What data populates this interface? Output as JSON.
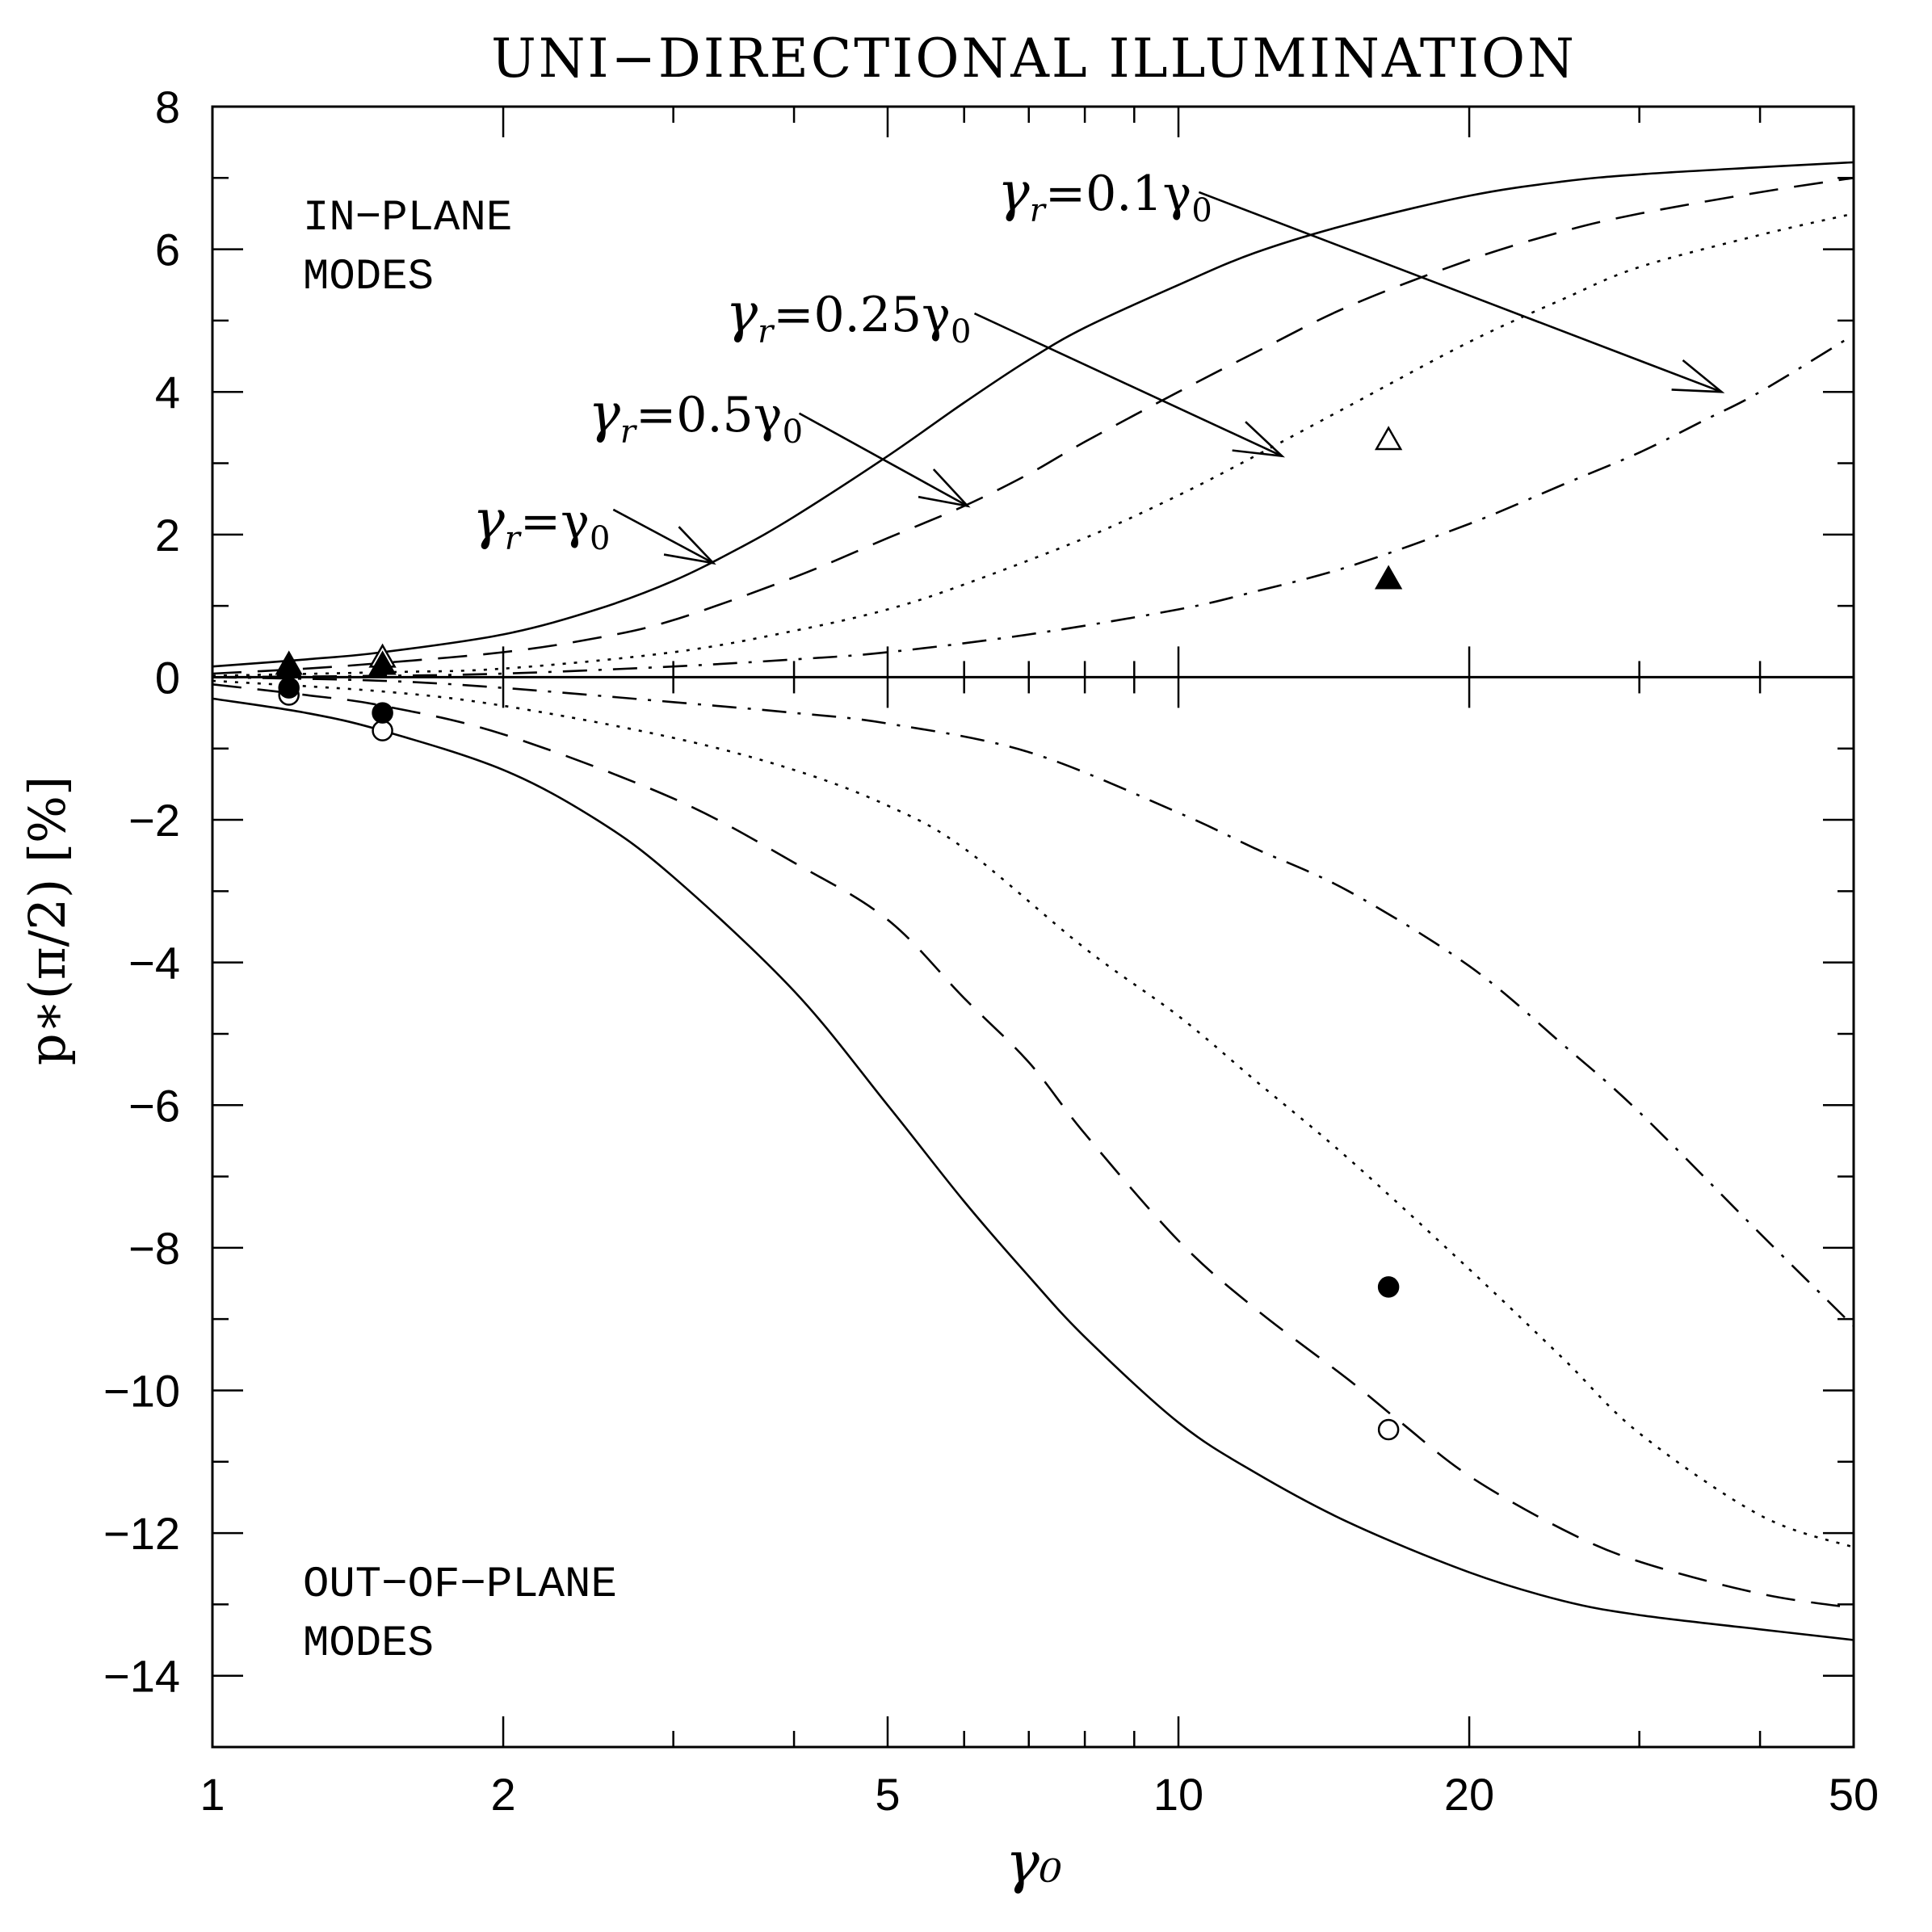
{
  "chart_data": {
    "type": "line",
    "title": "UNI−DIRECTIONAL ILLUMINATION",
    "xlabel": "γ₀",
    "ylabel": "p∗(π/2)  [%]",
    "xscale": "log",
    "xlim": [
      1,
      50
    ],
    "ylim": [
      -15,
      8
    ],
    "xticks": [
      {
        "value": 1,
        "label": "1"
      },
      {
        "value": 2,
        "label": "2"
      },
      {
        "value": 5,
        "label": "5"
      },
      {
        "value": 10,
        "label": "10"
      },
      {
        "value": 20,
        "label": "20"
      },
      {
        "value": 50,
        "label": "50"
      }
    ],
    "yticks": [
      {
        "value": 8,
        "label": "8"
      },
      {
        "value": 6,
        "label": "6"
      },
      {
        "value": 4,
        "label": "4"
      },
      {
        "value": 2,
        "label": "2"
      },
      {
        "value": 0,
        "label": "0"
      },
      {
        "value": -2,
        "label": "−2"
      },
      {
        "value": -4,
        "label": "−4"
      },
      {
        "value": -6,
        "label": "−6"
      },
      {
        "value": -8,
        "label": "−8"
      },
      {
        "value": -10,
        "label": "−10"
      },
      {
        "value": -12,
        "label": "−12"
      },
      {
        "value": -14,
        "label": "−14"
      }
    ],
    "region_labels": {
      "in_plane_line1": "IN−PLANE",
      "in_plane_line2": "MODES",
      "out_plane_line1": "OUT−OF−PLANE",
      "out_plane_line2": "MODES"
    },
    "series": [
      {
        "name": "γr=γ₀ (in-plane)",
        "style": "solid",
        "x": [
          1,
          1.25,
          1.5,
          2,
          2.5,
          3,
          3.5,
          4,
          5,
          6,
          7,
          8,
          10,
          12,
          15,
          20,
          25,
          30,
          40,
          50
        ],
        "y": [
          0.15,
          0.25,
          0.35,
          0.6,
          0.95,
          1.35,
          1.8,
          2.25,
          3.1,
          3.85,
          4.45,
          4.9,
          5.5,
          5.95,
          6.35,
          6.75,
          6.95,
          7.05,
          7.15,
          7.22
        ]
      },
      {
        "name": "γr=0.5γ₀ (in-plane)",
        "style": "dashed",
        "x": [
          1,
          1.25,
          1.5,
          2,
          2.5,
          3,
          4,
          5,
          6,
          7,
          8,
          10,
          12,
          15,
          20,
          25,
          30,
          40,
          50
        ],
        "y": [
          0.05,
          0.12,
          0.2,
          0.35,
          0.55,
          0.8,
          1.4,
          1.95,
          2.4,
          2.85,
          3.3,
          4.0,
          4.55,
          5.2,
          5.85,
          6.25,
          6.5,
          6.8,
          7.0
        ]
      },
      {
        "name": "γr=0.25γ₀ (in-plane)",
        "style": "dotted",
        "x": [
          1,
          1.5,
          2,
          3,
          4,
          5,
          6,
          8,
          10,
          12,
          15,
          20,
          25,
          30,
          40,
          50
        ],
        "y": [
          0.02,
          0.07,
          0.12,
          0.35,
          0.65,
          0.95,
          1.3,
          1.95,
          2.55,
          3.1,
          3.8,
          4.7,
          5.3,
          5.75,
          6.2,
          6.5
        ]
      },
      {
        "name": "γr=0.1γ₀ (in-plane)",
        "style": "dashdot",
        "x": [
          1,
          1.5,
          2,
          3,
          4,
          5,
          7,
          10,
          12,
          15,
          20,
          25,
          30,
          35,
          40,
          50
        ],
        "y": [
          0.0,
          0.02,
          0.05,
          0.15,
          0.25,
          0.35,
          0.6,
          0.95,
          1.2,
          1.55,
          2.15,
          2.7,
          3.15,
          3.6,
          4.0,
          4.8
        ]
      },
      {
        "name": "γr=γ₀ (out-of-plane)",
        "style": "solid",
        "x": [
          1,
          1.25,
          1.5,
          2,
          2.5,
          3,
          4,
          5,
          6,
          7,
          8,
          10,
          12,
          15,
          20,
          25,
          30,
          40,
          50
        ],
        "y": [
          -0.3,
          -0.5,
          -0.75,
          -1.3,
          -2.0,
          -2.8,
          -4.4,
          -6.0,
          -7.35,
          -8.4,
          -9.25,
          -10.45,
          -11.15,
          -11.85,
          -12.55,
          -12.95,
          -13.15,
          -13.35,
          -13.5
        ]
      },
      {
        "name": "γr=0.5γ₀ (out-of-plane)",
        "style": "dashed",
        "x": [
          1,
          1.25,
          1.5,
          2,
          3,
          4,
          5,
          6,
          7,
          8,
          10,
          12,
          15,
          17,
          20,
          25,
          30,
          40,
          50
        ],
        "y": [
          -0.1,
          -0.25,
          -0.4,
          -0.8,
          -1.7,
          -2.6,
          -3.4,
          -4.5,
          -5.4,
          -6.4,
          -7.9,
          -8.85,
          -9.85,
          -10.45,
          -11.2,
          -11.95,
          -12.4,
          -12.85,
          -13.05
        ]
      },
      {
        "name": "γr=0.25γ₀ (out-of-plane)",
        "style": "dotted",
        "x": [
          1,
          1.5,
          2,
          3,
          4,
          5,
          6,
          8,
          10,
          12,
          15,
          20,
          25,
          30,
          40,
          50
        ],
        "y": [
          -0.05,
          -0.2,
          -0.4,
          -0.85,
          -1.3,
          -1.8,
          -2.4,
          -3.8,
          -4.75,
          -5.65,
          -6.75,
          -8.3,
          -9.55,
          -10.6,
          -11.75,
          -12.2
        ]
      },
      {
        "name": "γr=0.1γ₀ (out-of-plane)",
        "style": "dashdot",
        "x": [
          1,
          1.5,
          2,
          3,
          4,
          5,
          7,
          10,
          12,
          15,
          20,
          25,
          30,
          40,
          50
        ],
        "y": [
          0.0,
          -0.05,
          -0.15,
          -0.35,
          -0.5,
          -0.65,
          -1.05,
          -1.9,
          -2.4,
          -3.0,
          -4.05,
          -5.15,
          -6.1,
          -7.8,
          -9.1
        ]
      }
    ],
    "markers": [
      {
        "kind": "open-triangle",
        "points": [
          [
            1.2,
            0.15
          ],
          [
            1.5,
            0.25
          ],
          [
            16.5,
            3.3
          ]
        ]
      },
      {
        "kind": "filled-triangle",
        "points": [
          [
            1.2,
            0.1
          ],
          [
            1.5,
            0.15
          ],
          [
            16.5,
            1.35
          ]
        ]
      },
      {
        "kind": "open-circle",
        "points": [
          [
            1.2,
            -0.25
          ],
          [
            1.5,
            -0.75
          ],
          [
            16.5,
            -10.55
          ]
        ]
      },
      {
        "kind": "filled-circle",
        "points": [
          [
            1.2,
            -0.15
          ],
          [
            1.5,
            -0.5
          ],
          [
            16.5,
            -8.55
          ]
        ]
      }
    ],
    "annotations": [
      {
        "label_main": "γ",
        "label_sub": "r",
        "label_rest": "=0.1γ",
        "label_sub2": "0",
        "text_at": [
          6.5,
          6.55
        ],
        "line_from": [
          10.5,
          6.8
        ],
        "arrow_to": [
          36.5,
          4.0
        ]
      },
      {
        "label_main": "γ",
        "label_sub": "r",
        "label_rest": "=0.25γ",
        "label_sub2": "0",
        "text_at": [
          3.4,
          4.85
        ],
        "line_from": [
          6.15,
          5.1
        ],
        "arrow_to": [
          12.8,
          3.1
        ]
      },
      {
        "label_main": "γ",
        "label_sub": "r",
        "label_rest": "=0.5γ",
        "label_sub2": "0",
        "text_at": [
          2.45,
          3.45
        ],
        "line_from": [
          4.05,
          3.7
        ],
        "arrow_to": [
          6.05,
          2.4
        ]
      },
      {
        "label_main": "γ",
        "label_sub": "r",
        "label_rest": "=γ",
        "label_sub2": "0",
        "text_at": [
          1.86,
          1.95
        ],
        "line_from": [
          2.6,
          2.35
        ],
        "arrow_to": [
          3.3,
          1.6
        ]
      }
    ]
  }
}
